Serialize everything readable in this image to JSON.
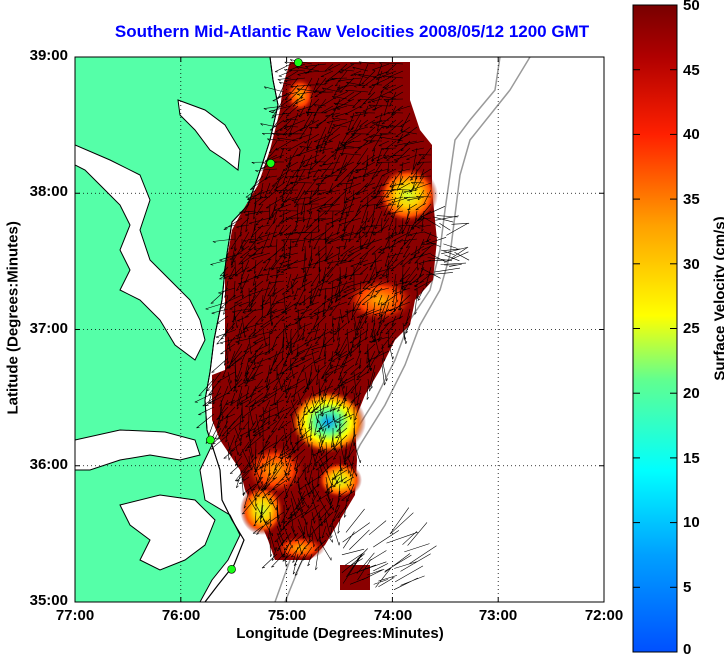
{
  "title": "Southern Mid-Atlantic Raw Velocities 2008/05/12 1200 GMT",
  "xlabel": "Longitude (Degrees:Minutes)",
  "ylabel": "Latitude (Degrees:Minutes)",
  "colorbar_label": "Surface Velocity (cm/s)",
  "x_ticks": [
    "77:00",
    "76:00",
    "75:00",
    "74:00",
    "73:00",
    "72:00"
  ],
  "y_ticks": [
    "39:00",
    "38:00",
    "37:00",
    "36:00",
    "35:00"
  ],
  "colorbar_ticks": [
    "50",
    "45",
    "40",
    "35",
    "30",
    "25",
    "20",
    "15",
    "10",
    "5",
    "0"
  ],
  "colors": {
    "land": "#55ffa8",
    "coastline": "#000000",
    "isobath": "#9a9a9a",
    "field_high": "#7a0000",
    "field_mid": "#ff3000",
    "field_low": "#19a0ff",
    "site_marker": "#19ff19",
    "title": "#0000ff"
  },
  "chart_data": {
    "type": "heatmap",
    "map_type": "HF radar surface current field with velocity vectors",
    "xlim": [
      -77.0,
      -72.0
    ],
    "ylim": [
      35.0,
      39.0
    ],
    "grid": "dotted",
    "color_scale": {
      "min": 0,
      "max": 50,
      "units": "cm/s",
      "colormap": "jet"
    },
    "site_markers": [
      {
        "lon": -74.89,
        "lat": 38.96
      },
      {
        "lon": -75.15,
        "lat": 38.22
      },
      {
        "lon": -75.72,
        "lat": 36.19
      },
      {
        "lon": -75.52,
        "lat": 35.24
      }
    ],
    "low_speed_regions": [
      {
        "lon": -74.6,
        "lat": 36.32,
        "speed": 10
      },
      {
        "lon": -73.9,
        "lat": 38.02,
        "speed": 25
      },
      {
        "lon": -74.2,
        "lat": 37.25,
        "speed": 32
      },
      {
        "lon": -75.1,
        "lat": 35.95,
        "speed": 30
      },
      {
        "lon": -75.0,
        "lat": 35.5,
        "speed": 25
      }
    ]
  }
}
